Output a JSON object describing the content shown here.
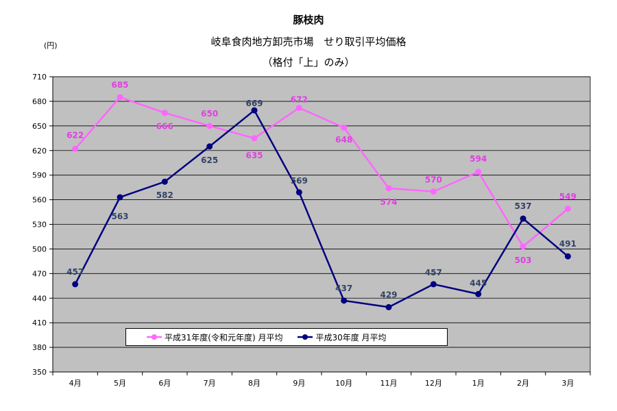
{
  "title": "豚枝肉",
  "subtitle": "岐阜食肉地方卸売市場　せり取引平均価格",
  "subtitle2": "（格付「上」のみ）",
  "y_unit": "(円)",
  "chart_data": {
    "type": "line",
    "categories": [
      "4月",
      "5月",
      "6月",
      "7月",
      "8月",
      "9月",
      "10月",
      "11月",
      "12月",
      "1月",
      "2月",
      "3月"
    ],
    "ylim": [
      350,
      710
    ],
    "yticks": [
      350,
      380,
      410,
      440,
      470,
      500,
      530,
      560,
      590,
      620,
      650,
      680,
      710
    ],
    "grid": true,
    "legend_position": "bottom-center",
    "series": [
      {
        "name": "平成31年度(令和元年度) 月平均",
        "color": "#ff66ff",
        "label_color": "#e040e0",
        "values": [
          622,
          685,
          666,
          650,
          635,
          672,
          648,
          574,
          570,
          594,
          503,
          549
        ]
      },
      {
        "name": "平成30年度 月平均",
        "color": "#000080",
        "label_color": "#334466",
        "values": [
          457,
          563,
          582,
          625,
          669,
          569,
          437,
          429,
          457,
          445,
          537,
          491
        ]
      }
    ]
  }
}
